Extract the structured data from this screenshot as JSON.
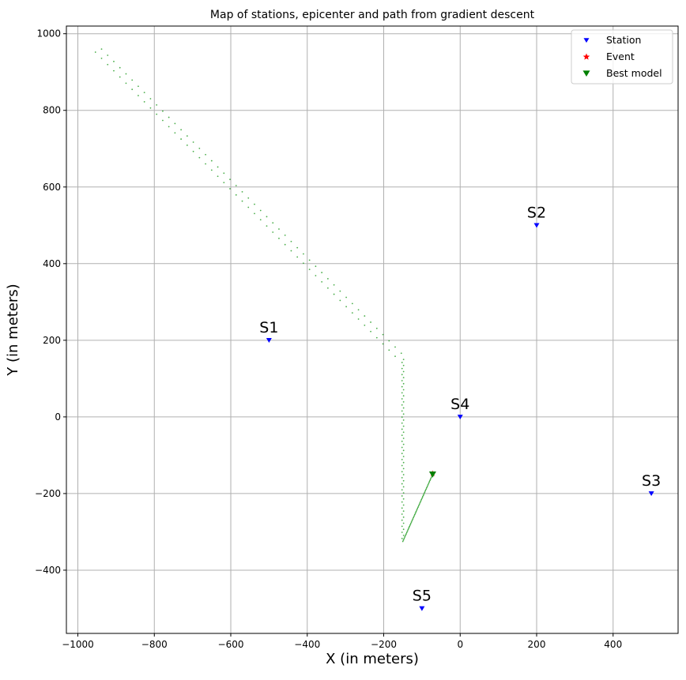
{
  "chart_data": {
    "type": "scatter",
    "title": "Map of stations, epicenter and path from gradient descent",
    "xlabel": "X (in meters)",
    "ylabel": "Y (in meters)",
    "xlim": [
      -1030,
      570
    ],
    "ylim": [
      -565,
      1020
    ],
    "grid": true,
    "legend_position": "top-right",
    "x_ticks": [
      -1000,
      -800,
      -600,
      -400,
      -200,
      0,
      200,
      400
    ],
    "y_ticks": [
      -400,
      -200,
      0,
      200,
      400,
      600,
      800,
      1000
    ],
    "x_tick_labels": [
      "−1000",
      "−800",
      "−600",
      "−400",
      "−200",
      "0",
      "200",
      "400"
    ],
    "y_tick_labels": [
      "−400",
      "−200",
      "0",
      "200",
      "400",
      "600",
      "800",
      "1000"
    ],
    "legend": [
      {
        "label": "Station",
        "marker": "triangle-down-small",
        "color": "#0000ff"
      },
      {
        "label": "Event",
        "marker": "star",
        "color": "#ff0000"
      },
      {
        "label": "Best model",
        "marker": "triangle-down",
        "color": "#008000"
      }
    ],
    "stations": [
      {
        "name": "S1",
        "x": -500,
        "y": 200
      },
      {
        "name": "S2",
        "x": 200,
        "y": 500
      },
      {
        "name": "S3",
        "x": 500,
        "y": -200
      },
      {
        "name": "S4",
        "x": 0,
        "y": 0
      },
      {
        "name": "S5",
        "x": -100,
        "y": -500
      }
    ],
    "event": {
      "x": -72,
      "y": -148
    },
    "best_model": {
      "x": -72,
      "y": -150
    },
    "path": {
      "color": "#2ca02c",
      "start": [
        -950,
        960
      ],
      "kinks": [
        [
          -150,
          150
        ],
        [
          -150,
          -325
        ],
        [
          -72,
          -150
        ]
      ],
      "segments": [
        {
          "from": [
            -950,
            960
          ],
          "to": [
            -150,
            150
          ],
          "n": 100,
          "zigzag": 12
        },
        {
          "from": [
            -150,
            150
          ],
          "to": [
            -150,
            -325
          ],
          "n": 60,
          "zigzag": 2
        },
        {
          "from": [
            -150,
            -325
          ],
          "to": [
            -72,
            -150
          ],
          "n": 45,
          "zigzag": 0
        }
      ]
    },
    "colors": {
      "station": "#0000ff",
      "event": "#ff0000",
      "best_model": "#008000",
      "grid": "#b0b0b0"
    }
  }
}
